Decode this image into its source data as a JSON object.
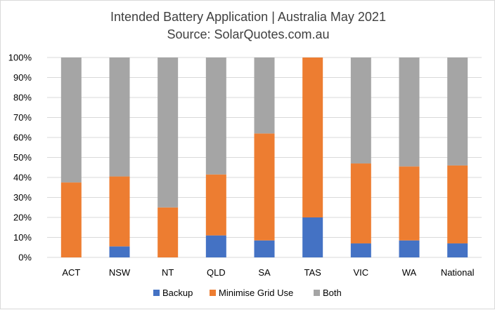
{
  "chart_data": {
    "type": "bar",
    "stacked": true,
    "title": "Intended Battery Application | Australia May 2021",
    "subtitle": "Source: SolarQuotes.com.au",
    "xlabel": "",
    "ylabel": "",
    "ylim": [
      0,
      100
    ],
    "ytick_labels": [
      "0%",
      "10%",
      "20%",
      "30%",
      "40%",
      "50%",
      "60%",
      "70%",
      "80%",
      "90%",
      "100%"
    ],
    "ytick_values": [
      0,
      10,
      20,
      30,
      40,
      50,
      60,
      70,
      80,
      90,
      100
    ],
    "grid": true,
    "legend_position": "bottom",
    "categories": [
      "ACT",
      "NSW",
      "NT",
      "QLD",
      "SA",
      "TAS",
      "VIC",
      "WA",
      "National"
    ],
    "series": [
      {
        "name": "Backup",
        "color": "#4472c4",
        "values": [
          0,
          5.5,
          0,
          11,
          8.5,
          20,
          7,
          8.5,
          7
        ]
      },
      {
        "name": "Minimise Grid Use",
        "color": "#ed7d31",
        "values": [
          37.5,
          35,
          25,
          30.5,
          53.5,
          80,
          40,
          37,
          39
        ]
      },
      {
        "name": "Both",
        "color": "#a5a5a5",
        "values": [
          62.5,
          59.5,
          75,
          58.5,
          38,
          0,
          53,
          54.5,
          54
        ]
      }
    ]
  }
}
